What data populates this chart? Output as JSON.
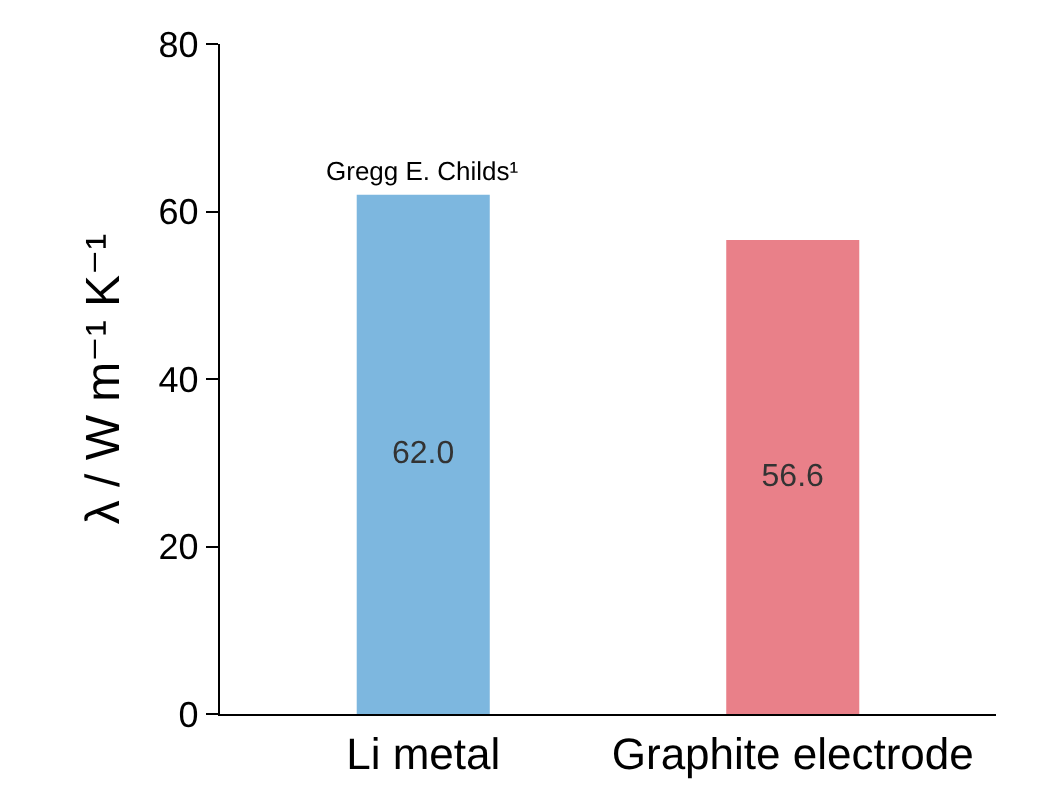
{
  "chart_data": {
    "type": "bar",
    "ylabel": "λ / W m⁻¹ K⁻¹",
    "categories": [
      "Li metal",
      "Graphite electrode"
    ],
    "values": [
      62.0,
      56.6
    ],
    "colors": [
      "#7db7df",
      "#e98089"
    ],
    "value_labels": [
      "62.0",
      "56.6"
    ],
    "ylim": [
      0,
      80
    ],
    "yticks": [
      0,
      20,
      40,
      60,
      80
    ],
    "grid": false,
    "annotations": [
      {
        "text": "Gregg E. Childs¹",
        "x": "Li metal",
        "y": 62.0
      }
    ]
  }
}
